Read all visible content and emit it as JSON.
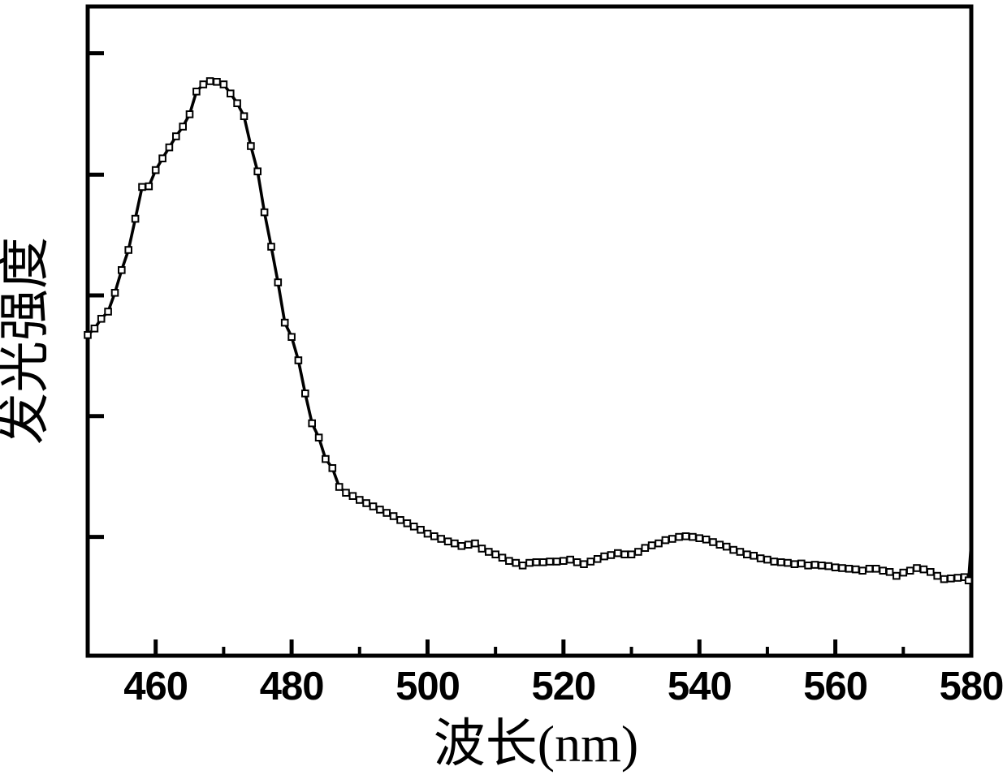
{
  "figure": {
    "background_color": "#ffffff",
    "line_color": "#000000",
    "marker_fill": "#ffffff",
    "marker_shape": "open-square"
  },
  "chart_data": {
    "type": "line",
    "title": "",
    "xlabel": "波长(nm)",
    "ylabel": "发光强度",
    "grid": false,
    "legend": null,
    "x_axis": {
      "min": 450,
      "max": 580,
      "major_ticks": [
        460,
        480,
        500,
        520,
        540,
        560,
        580
      ],
      "minor_ticks": [
        450,
        470,
        490,
        510,
        530,
        550,
        570
      ],
      "tick_labels": [
        "460",
        "480",
        "500",
        "520",
        "540",
        "560",
        "580"
      ]
    },
    "y_axis": {
      "min": 0,
      "max": 100,
      "unit": "arbitrary units",
      "tick_labels_visible": false,
      "tick_values": [
        18.3,
        36.9,
        55.5,
        74.1,
        92.8
      ]
    },
    "series": [
      {
        "name": "emission-spectrum",
        "peak_nm": 468,
        "secondary_bump_nm": 538,
        "points": [
          [
            450,
            49.4
          ],
          [
            451,
            50.4
          ],
          [
            452,
            51.9
          ],
          [
            453,
            53.0
          ],
          [
            454,
            55.9
          ],
          [
            455,
            59.4
          ],
          [
            456,
            62.5
          ],
          [
            457,
            67.3
          ],
          [
            458,
            72.2
          ],
          [
            459,
            72.3
          ],
          [
            460,
            74.8
          ],
          [
            461,
            76.6
          ],
          [
            462,
            78.3
          ],
          [
            463,
            80.0
          ],
          [
            464,
            81.5
          ],
          [
            465,
            83.4
          ],
          [
            466,
            86.9
          ],
          [
            467,
            88.0
          ],
          [
            468,
            88.5
          ],
          [
            469,
            88.4
          ],
          [
            470,
            88.0
          ],
          [
            471,
            86.6
          ],
          [
            472,
            85.1
          ],
          [
            473,
            83.1
          ],
          [
            474,
            78.5
          ],
          [
            475,
            74.6
          ],
          [
            476,
            68.3
          ],
          [
            477,
            63.0
          ],
          [
            478,
            57.5
          ],
          [
            479,
            51.3
          ],
          [
            480,
            49.1
          ],
          [
            481,
            45.5
          ],
          [
            482,
            40.4
          ],
          [
            483,
            35.8
          ],
          [
            484,
            33.6
          ],
          [
            485,
            30.3
          ],
          [
            486,
            28.9
          ],
          [
            487,
            26.0
          ],
          [
            488,
            25.1
          ],
          [
            489,
            24.6
          ],
          [
            490,
            24.0
          ],
          [
            491,
            23.5
          ],
          [
            492,
            23.0
          ],
          [
            493,
            22.5
          ],
          [
            494,
            22.0
          ],
          [
            495,
            21.5
          ],
          [
            496,
            20.9
          ],
          [
            497,
            20.4
          ],
          [
            498,
            19.9
          ],
          [
            499,
            19.4
          ],
          [
            500,
            18.8
          ],
          [
            501,
            18.4
          ],
          [
            502,
            18.0
          ],
          [
            503,
            17.6
          ],
          [
            504,
            17.3
          ],
          [
            505,
            16.9
          ],
          [
            506,
            17.1
          ],
          [
            507,
            17.3
          ],
          [
            508,
            16.5
          ],
          [
            509,
            16.0
          ],
          [
            510,
            15.6
          ],
          [
            511,
            15.1
          ],
          [
            512,
            14.6
          ],
          [
            513,
            14.3
          ],
          [
            514,
            13.9
          ],
          [
            515,
            14.3
          ],
          [
            516,
            14.4
          ],
          [
            517,
            14.4
          ],
          [
            518,
            14.5
          ],
          [
            519,
            14.5
          ],
          [
            520,
            14.6
          ],
          [
            521,
            14.8
          ],
          [
            522,
            14.4
          ],
          [
            523,
            14.1
          ],
          [
            524,
            14.5
          ],
          [
            525,
            14.9
          ],
          [
            526,
            15.3
          ],
          [
            527,
            15.5
          ],
          [
            528,
            15.8
          ],
          [
            529,
            15.6
          ],
          [
            530,
            15.6
          ],
          [
            531,
            16.0
          ],
          [
            532,
            16.6
          ],
          [
            533,
            17.0
          ],
          [
            534,
            17.3
          ],
          [
            535,
            17.8
          ],
          [
            536,
            18.0
          ],
          [
            537,
            18.3
          ],
          [
            538,
            18.4
          ],
          [
            539,
            18.3
          ],
          [
            540,
            18.1
          ],
          [
            541,
            17.9
          ],
          [
            542,
            17.5
          ],
          [
            543,
            17.1
          ],
          [
            544,
            16.8
          ],
          [
            545,
            16.3
          ],
          [
            546,
            16.0
          ],
          [
            547,
            15.6
          ],
          [
            548,
            15.4
          ],
          [
            549,
            15.0
          ],
          [
            550,
            14.8
          ],
          [
            551,
            14.5
          ],
          [
            552,
            14.4
          ],
          [
            553,
            14.3
          ],
          [
            554,
            14.1
          ],
          [
            555,
            14.2
          ],
          [
            556,
            13.9
          ],
          [
            557,
            14.0
          ],
          [
            558,
            13.9
          ],
          [
            559,
            13.8
          ],
          [
            560,
            13.6
          ],
          [
            561,
            13.5
          ],
          [
            562,
            13.4
          ],
          [
            563,
            13.3
          ],
          [
            564,
            13.1
          ],
          [
            565,
            13.4
          ],
          [
            566,
            13.4
          ],
          [
            567,
            13.1
          ],
          [
            568,
            12.9
          ],
          [
            569,
            12.3
          ],
          [
            570,
            12.8
          ],
          [
            571,
            13.1
          ],
          [
            572,
            13.5
          ],
          [
            573,
            13.3
          ],
          [
            574,
            12.9
          ],
          [
            575,
            12.3
          ],
          [
            576,
            11.8
          ],
          [
            577,
            11.9
          ],
          [
            578,
            12.0
          ],
          [
            579,
            12.1
          ],
          [
            579.6,
            11.6
          ],
          [
            580,
            17.4,
            0
          ]
        ]
      }
    ]
  }
}
